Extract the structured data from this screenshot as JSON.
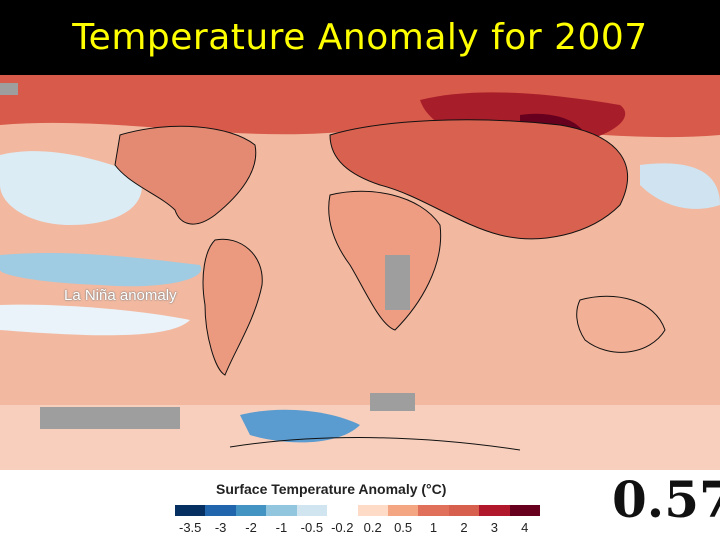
{
  "slide": {
    "title": "Temperature Anomaly for 2007",
    "title_color": "#ffff00",
    "background": "#000000"
  },
  "map": {
    "annotation": "La Niña anomaly",
    "colors": {
      "neg_strong": "#2166ac",
      "neg": "#92c5de",
      "neutral": "#ffffff",
      "pos_light": "#f8c3a8",
      "pos": "#e0705a",
      "pos_strong": "#b2182b",
      "pos_max": "#67001f",
      "no_data": "#9e9e9e"
    }
  },
  "legend": {
    "title": "Surface Temperature Anomaly (°C)",
    "ticks": [
      "-3.5",
      "-3",
      "-2",
      "-1",
      "-0.5",
      "-0.2",
      "0.2",
      "0.5",
      "1",
      "2",
      "3",
      "4"
    ],
    "colors": [
      "#053061",
      "#2166ac",
      "#4393c3",
      "#92c5de",
      "#d1e5f0",
      "#ffffff",
      "#fddbc7",
      "#f4a582",
      "#e0705a",
      "#d6604d",
      "#b2182b",
      "#67001f"
    ]
  },
  "global_mean_anomaly": "0.57"
}
